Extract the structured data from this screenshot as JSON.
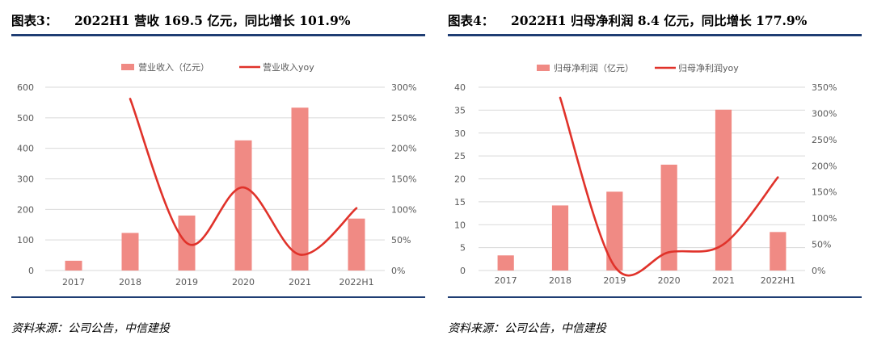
{
  "figures": [
    {
      "label": "图表3：",
      "heading": "2022H1 营收 169.5 亿元，同比增长 101.9%",
      "source": "资料来源：公司公告，中信建投",
      "colors": {
        "bar": "#f08a84",
        "line": "#e0322a",
        "rule": "#1f3d73"
      }
    },
    {
      "label": "图表4：",
      "heading": "2022H1 归母净利润 8.4 亿元，同比增长 177.9%",
      "source": "资料来源：公司公告，中信建投",
      "colors": {
        "bar": "#f08a84",
        "line": "#e0322a",
        "rule": "#1f3d73"
      }
    }
  ],
  "chart_data": [
    {
      "type": "bar",
      "categories": [
        "2017",
        "2018",
        "2019",
        "2020",
        "2021",
        "2022H1"
      ],
      "series": [
        {
          "name": "营业收入（亿元）",
          "type": "bar",
          "axis": "left",
          "values": [
            32,
            123,
            180,
            426,
            533,
            170
          ]
        },
        {
          "name": "营业收入yoy",
          "type": "line",
          "axis": "right",
          "values": [
            null,
            281,
            45,
            136,
            26,
            102
          ]
        }
      ],
      "yleft": {
        "min": 0,
        "max": 600,
        "ticks": [
          0,
          100,
          200,
          300,
          400,
          500,
          600
        ],
        "tick_labels": [
          "0",
          "100",
          "200",
          "300",
          "400",
          "500",
          "600"
        ]
      },
      "yright": {
        "min": 0,
        "max": 300,
        "ticks": [
          0,
          50,
          100,
          150,
          200,
          250,
          300
        ],
        "tick_labels": [
          "0%",
          "50%",
          "100%",
          "150%",
          "200%",
          "250%",
          "300%"
        ]
      },
      "grid": true,
      "legend_position": "top-center"
    },
    {
      "type": "bar",
      "categories": [
        "2017",
        "2018",
        "2019",
        "2020",
        "2021",
        "2022H1"
      ],
      "series": [
        {
          "name": "归母净利润（亿元）",
          "type": "bar",
          "axis": "left",
          "values": [
            3.3,
            14.2,
            17.2,
            23.1,
            35.1,
            8.4
          ]
        },
        {
          "name": "归母净利润yoy",
          "type": "line",
          "axis": "right",
          "values": [
            null,
            330,
            8,
            35,
            50,
            178
          ]
        }
      ],
      "yleft": {
        "min": 0,
        "max": 40,
        "ticks": [
          0,
          5,
          10,
          15,
          20,
          25,
          30,
          35,
          40
        ],
        "tick_labels": [
          "0",
          "5",
          "10",
          "15",
          "20",
          "25",
          "30",
          "35",
          "40"
        ]
      },
      "yright": {
        "min": 0,
        "max": 350,
        "ticks": [
          0,
          50,
          100,
          150,
          200,
          250,
          300,
          350
        ],
        "tick_labels": [
          "0%",
          "50%",
          "100%",
          "150%",
          "200%",
          "250%",
          "300%",
          "350%"
        ]
      },
      "grid": true,
      "legend_position": "top-center"
    }
  ]
}
